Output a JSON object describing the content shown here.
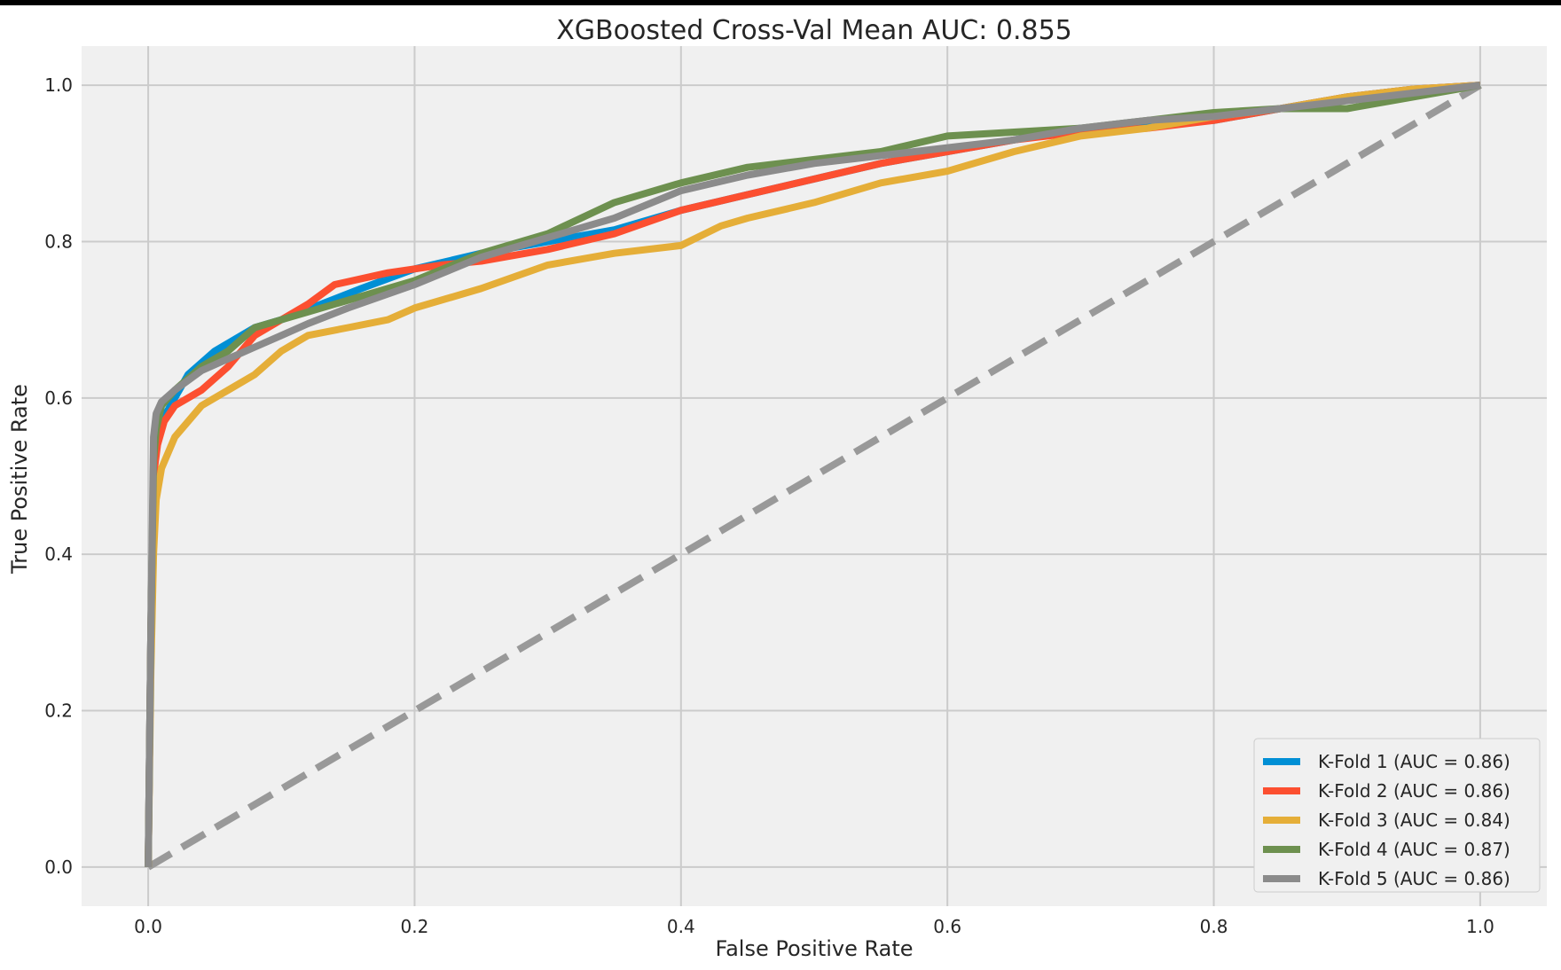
{
  "chart_data": {
    "type": "line",
    "title": "XGBoosted Cross-Val Mean AUC: 0.855",
    "xlabel": "False Positive Rate",
    "ylabel": "True Positive Rate",
    "xlim": [
      -0.05,
      1.05
    ],
    "ylim": [
      -0.05,
      1.05
    ],
    "xticks": [
      0.0,
      0.2,
      0.4,
      0.6,
      0.8,
      1.0
    ],
    "yticks": [
      0.0,
      0.2,
      0.4,
      0.6,
      0.8,
      1.0
    ],
    "xtick_labels": [
      "0.0",
      "0.2",
      "0.4",
      "0.6",
      "0.8",
      "1.0"
    ],
    "ytick_labels": [
      "0.0",
      "0.2",
      "0.4",
      "0.6",
      "0.8",
      "1.0"
    ],
    "grid": true,
    "legend_position": "lower-right",
    "background": "#f0f0f0",
    "grid_color": "#cbcbcb",
    "series": [
      {
        "name": "K-Fold 1 (AUC = 0.86)",
        "color": "#008fd5",
        "x": [
          0.0,
          0.002,
          0.004,
          0.006,
          0.01,
          0.02,
          0.03,
          0.05,
          0.08,
          0.1,
          0.13,
          0.16,
          0.2,
          0.25,
          0.3,
          0.35,
          0.4,
          0.45,
          0.5,
          0.55,
          0.6,
          0.65,
          0.7,
          0.75,
          0.8,
          0.85,
          0.9,
          0.95,
          1.0
        ],
        "y": [
          0.0,
          0.3,
          0.5,
          0.55,
          0.57,
          0.6,
          0.63,
          0.66,
          0.69,
          0.7,
          0.72,
          0.74,
          0.765,
          0.785,
          0.8,
          0.815,
          0.84,
          0.86,
          0.88,
          0.9,
          0.915,
          0.93,
          0.945,
          0.95,
          0.955,
          0.97,
          0.985,
          0.995,
          1.0
        ]
      },
      {
        "name": "K-Fold 2 (AUC = 0.86)",
        "color": "#fc4f30",
        "x": [
          0.0,
          0.002,
          0.004,
          0.007,
          0.012,
          0.02,
          0.04,
          0.06,
          0.08,
          0.1,
          0.12,
          0.14,
          0.18,
          0.22,
          0.25,
          0.3,
          0.35,
          0.4,
          0.45,
          0.5,
          0.55,
          0.6,
          0.65,
          0.7,
          0.75,
          0.8,
          0.85,
          0.9,
          0.95,
          1.0
        ],
        "y": [
          0.0,
          0.3,
          0.5,
          0.54,
          0.57,
          0.59,
          0.61,
          0.64,
          0.68,
          0.7,
          0.72,
          0.745,
          0.76,
          0.77,
          0.775,
          0.79,
          0.81,
          0.84,
          0.86,
          0.88,
          0.9,
          0.915,
          0.93,
          0.94,
          0.945,
          0.955,
          0.97,
          0.985,
          0.995,
          1.0
        ]
      },
      {
        "name": "K-Fold 3 (AUC = 0.84)",
        "color": "#e5ae38",
        "x": [
          0.0,
          0.002,
          0.004,
          0.006,
          0.01,
          0.02,
          0.04,
          0.06,
          0.08,
          0.1,
          0.12,
          0.15,
          0.18,
          0.2,
          0.25,
          0.3,
          0.35,
          0.4,
          0.43,
          0.45,
          0.5,
          0.55,
          0.6,
          0.65,
          0.7,
          0.75,
          0.8,
          0.85,
          0.9,
          0.95,
          1.0
        ],
        "y": [
          0.0,
          0.25,
          0.4,
          0.47,
          0.51,
          0.55,
          0.59,
          0.61,
          0.63,
          0.66,
          0.68,
          0.69,
          0.7,
          0.715,
          0.74,
          0.77,
          0.785,
          0.795,
          0.82,
          0.83,
          0.85,
          0.875,
          0.89,
          0.915,
          0.935,
          0.945,
          0.96,
          0.97,
          0.985,
          0.995,
          1.0
        ]
      },
      {
        "name": "K-Fold 4 (AUC = 0.87)",
        "color": "#6d904f",
        "x": [
          0.0,
          0.002,
          0.004,
          0.006,
          0.01,
          0.02,
          0.04,
          0.06,
          0.08,
          0.1,
          0.12,
          0.15,
          0.2,
          0.25,
          0.3,
          0.35,
          0.4,
          0.45,
          0.5,
          0.55,
          0.6,
          0.65,
          0.7,
          0.75,
          0.8,
          0.85,
          0.9,
          0.95,
          1.0
        ],
        "y": [
          0.0,
          0.3,
          0.52,
          0.56,
          0.59,
          0.61,
          0.64,
          0.66,
          0.69,
          0.7,
          0.71,
          0.725,
          0.75,
          0.785,
          0.81,
          0.85,
          0.875,
          0.895,
          0.905,
          0.915,
          0.935,
          0.94,
          0.945,
          0.955,
          0.965,
          0.97,
          0.97,
          0.985,
          1.0
        ]
      },
      {
        "name": "K-Fold 5 (AUC = 0.86)",
        "color": "#8b8b8b",
        "x": [
          0.0,
          0.002,
          0.004,
          0.006,
          0.01,
          0.02,
          0.04,
          0.06,
          0.08,
          0.1,
          0.12,
          0.15,
          0.2,
          0.25,
          0.3,
          0.35,
          0.4,
          0.45,
          0.5,
          0.55,
          0.6,
          0.65,
          0.7,
          0.75,
          0.8,
          0.85,
          0.9,
          0.95,
          1.0
        ],
        "y": [
          0.0,
          0.3,
          0.55,
          0.58,
          0.595,
          0.61,
          0.635,
          0.65,
          0.665,
          0.68,
          0.695,
          0.715,
          0.745,
          0.78,
          0.805,
          0.83,
          0.865,
          0.885,
          0.9,
          0.91,
          0.92,
          0.93,
          0.945,
          0.955,
          0.96,
          0.97,
          0.98,
          0.99,
          1.0
        ]
      }
    ],
    "reference_line": {
      "x": [
        0.0,
        1.0
      ],
      "y": [
        0.0,
        1.0
      ],
      "color": "#999999",
      "style": "dashed"
    }
  }
}
